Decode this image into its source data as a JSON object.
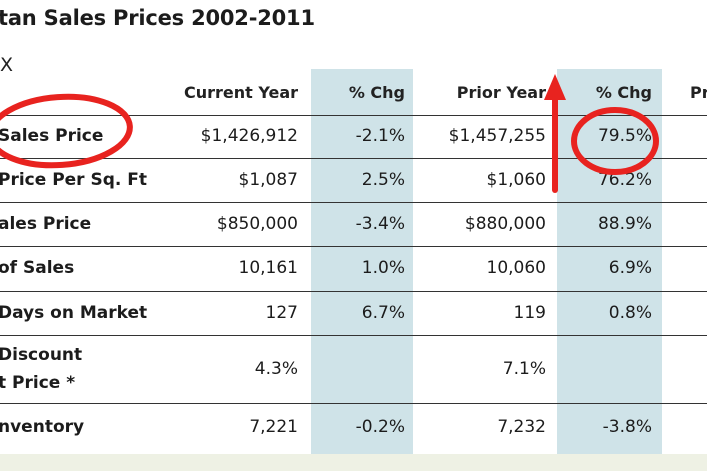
{
  "title": "tan Sales Prices 2002-2011",
  "x_label": "X",
  "headers": [
    "Current Year",
    "% Chg",
    "Prior Year",
    "% Chg",
    "Pr"
  ],
  "rows": [
    {
      "label": "Sales Price",
      "current": "$1,426,912",
      "chg1": "-2.1%",
      "prior": "$1,457,255",
      "chg2": "79.5%"
    },
    {
      "label": "Price Per Sq. Ft",
      "current": "$1,087",
      "chg1": "2.5%",
      "prior": "$1,060",
      "chg2": "76.2%"
    },
    {
      "label": "ales Price",
      "current": "$850,000",
      "chg1": "-3.4%",
      "prior": "$880,000",
      "chg2": "88.9%"
    },
    {
      "label": "of Sales",
      "current": "10,161",
      "chg1": "1.0%",
      "prior": "10,060",
      "chg2": "6.9%"
    },
    {
      "label": "Days on Market",
      "current": "127",
      "chg1": "6.7%",
      "prior": "119",
      "chg2": "0.8%"
    },
    {
      "label": "Discount",
      "label2": "t Price *",
      "current": "4.3%",
      "chg1": "",
      "prior": "7.1%",
      "chg2": ""
    },
    {
      "label": "nventory",
      "current": "7,221",
      "chg1": "-0.2%",
      "prior": "7,232",
      "chg2": "-3.8%"
    }
  ],
  "colors": {
    "annotation": "#e8231f",
    "column_shade": "#cfe3e8",
    "background": "#eef1e4"
  }
}
